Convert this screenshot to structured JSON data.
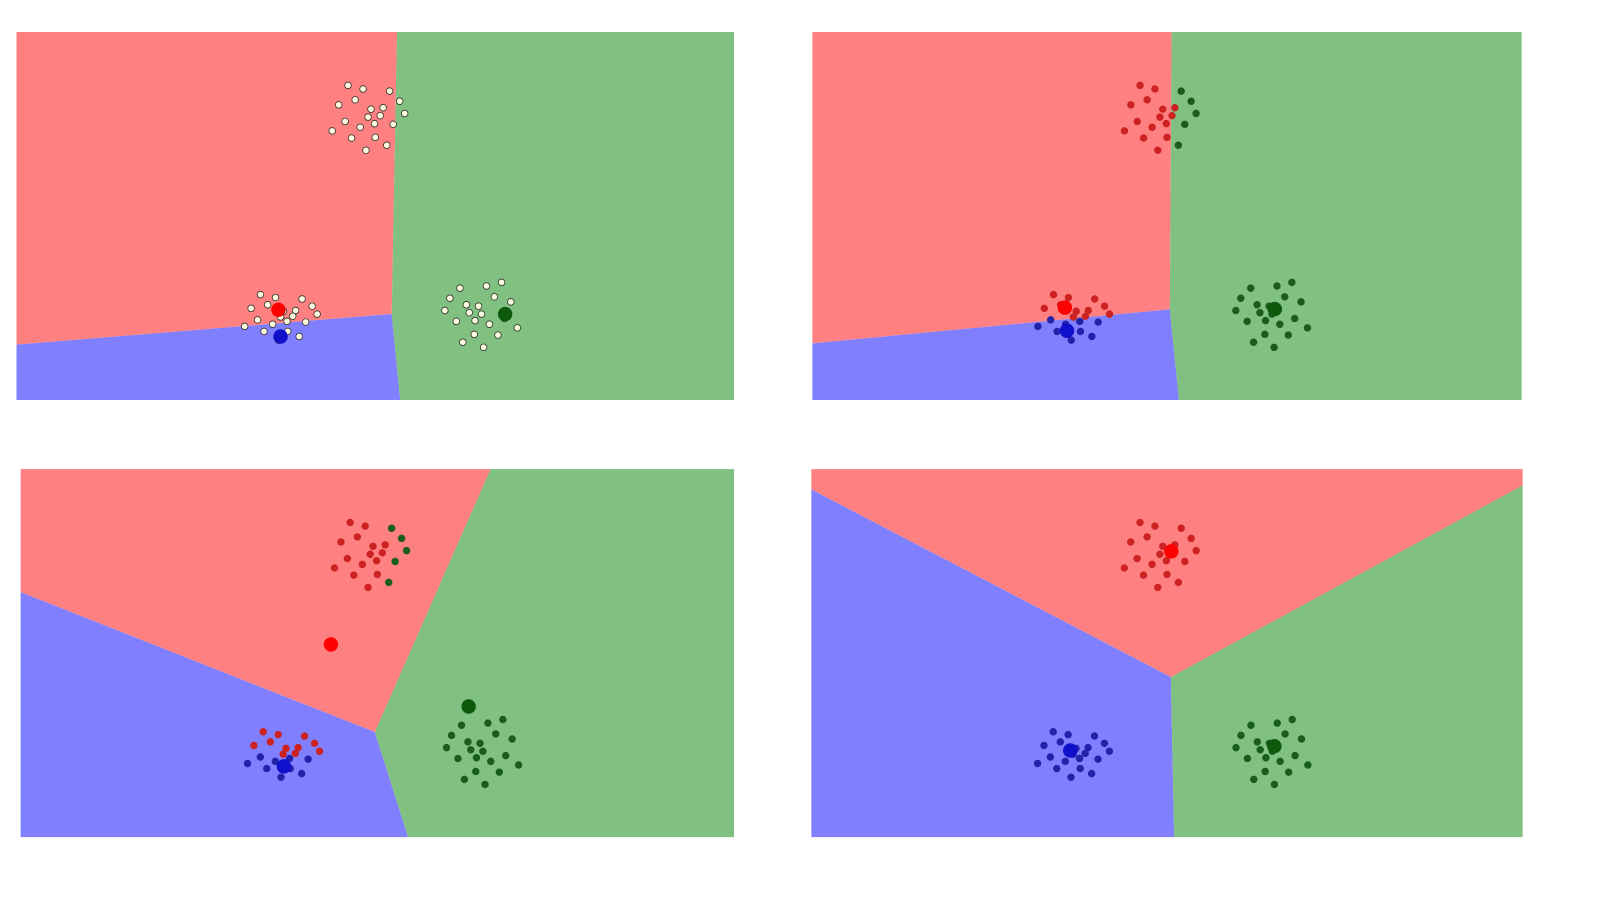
{
  "chart_data": [
    {
      "type": "scatter",
      "xlim": [
        0,
        100
      ],
      "ylim": [
        0,
        51
      ],
      "centroids": {
        "x": [
          36.5,
          36.8,
          68.1
        ],
        "y": [
          12.5,
          8.8,
          11.9
        ],
        "colors": [
          "#ff0000",
          "#1010cc",
          "#0d5a0d"
        ],
        "region_colors": [
          "#ff8080",
          "#8080ff",
          "#80c080"
        ]
      },
      "series": [
        {
          "color": "#fffde0",
          "edge": "#333333",
          "x": [
            49.0,
            51.1,
            47.2,
            52.5,
            45.8,
            50.0,
            48.3,
            53.4,
            44.9,
            51.6,
            46.7,
            49.4,
            47.9,
            50.7,
            48.7,
            54.1,
            44.0,
            52.0,
            46.2,
            49.9,
            36.8,
            38.9,
            35.0,
            40.3,
            33.6,
            37.8,
            36.1,
            41.2,
            32.7,
            39.4,
            34.5,
            37.2,
            35.7,
            38.5,
            36.5,
            41.9,
            31.8,
            39.8,
            34.0,
            37.7,
            64.8,
            62.7,
            66.6,
            61.3,
            68.0,
            63.8,
            65.5,
            60.4,
            68.9,
            62.2,
            67.1,
            64.4,
            65.9,
            63.1,
            65.1,
            59.7,
            69.8,
            61.8,
            67.6,
            63.9
          ],
          "y": [
            39.2,
            40.5,
            41.6,
            38.2,
            38.6,
            36.4,
            43.1,
            41.4,
            40.9,
            35.3,
            36.3,
            40.3,
            37.8,
            39.4,
            34.6,
            39.7,
            37.3,
            42.8,
            43.6,
            38.3,
            11.5,
            12.4,
            13.2,
            10.8,
            11.1,
            9.5,
            14.2,
            13.0,
            12.7,
            8.8,
            9.5,
            12.3,
            10.5,
            11.6,
            8.3,
            11.9,
            10.2,
            14.0,
            14.6,
            10.9,
            11.9,
            13.2,
            14.3,
            10.9,
            11.3,
            9.1,
            15.8,
            14.1,
            13.6,
            8.0,
            9.0,
            13.0,
            10.5,
            12.1,
            7.3,
            12.4,
            10.0,
            15.5,
            16.3,
            11.0
          ]
        }
      ]
    },
    {
      "type": "scatter",
      "xlim": [
        0,
        100
      ],
      "ylim": [
        0,
        51
      ],
      "centroids": {
        "x": [
          35.6,
          35.9,
          65.2
        ],
        "y": [
          12.8,
          9.6,
          12.6
        ],
        "colors": [
          "#ff0000",
          "#1010cc",
          "#0d5a0d"
        ],
        "region_colors": [
          "#ff8080",
          "#8080ff",
          "#80c080"
        ]
      },
      "series": [
        {
          "color": "#cc2222",
          "edge": "#cc2222",
          "x": [
            49.0,
            51.1,
            47.2,
            45.8,
            50.0,
            48.3,
            44.9,
            46.7,
            49.4,
            47.9,
            50.7,
            48.7,
            44.0,
            46.2,
            49.9,
            36.8,
            38.9,
            35.0,
            36.1,
            41.2,
            32.7,
            37.2,
            38.5,
            41.9,
            39.8,
            34.0
          ],
          "y": [
            39.2,
            40.5,
            41.6,
            38.6,
            36.4,
            43.1,
            40.9,
            36.3,
            40.3,
            37.8,
            39.4,
            34.6,
            37.3,
            43.6,
            38.3,
            11.5,
            12.4,
            13.2,
            14.2,
            13.0,
            12.7,
            12.3,
            11.6,
            11.9,
            14.0,
            14.6
          ]
        },
        {
          "color": "#1a5c1a",
          "edge": "#1a5c1a",
          "x": [
            52.5,
            53.4,
            51.6,
            54.1,
            52.0,
            64.8,
            62.7,
            66.6,
            61.3,
            68.0,
            63.8,
            65.5,
            60.4,
            68.9,
            62.2,
            67.1,
            64.4,
            65.9,
            63.1,
            65.1,
            59.7,
            69.8,
            61.8,
            67.6,
            63.9
          ],
          "y": [
            38.2,
            41.4,
            35.3,
            39.7,
            42.8,
            11.9,
            13.2,
            14.3,
            10.9,
            11.3,
            9.1,
            15.8,
            14.1,
            13.6,
            8.0,
            9.0,
            13.0,
            10.5,
            12.1,
            7.3,
            12.4,
            10.0,
            15.5,
            16.3,
            11.0
          ]
        },
        {
          "color": "#2222aa",
          "edge": "#2222aa",
          "x": [
            40.3,
            33.6,
            37.8,
            39.4,
            34.5,
            35.7,
            36.5,
            31.8,
            37.7
          ],
          "y": [
            10.8,
            11.1,
            9.5,
            8.8,
            9.5,
            10.5,
            8.3,
            10.2,
            10.9
          ]
        }
      ]
    },
    {
      "type": "scatter",
      "xlim": [
        0,
        100
      ],
      "ylim": [
        0,
        51
      ],
      "centroids": {
        "x": [
          43.5,
          36.9,
          62.8
        ],
        "y": [
          26.7,
          9.8,
          18.1
        ],
        "colors": [
          "#ff0000",
          "#1010cc",
          "#0d5a0d"
        ],
        "region_colors": [
          "#ff8080",
          "#8080ff",
          "#80c080"
        ]
      },
      "series": [
        {
          "color": "#cc2222",
          "edge": "#cc2222",
          "x": [
            49.0,
            51.1,
            47.2,
            45.8,
            50.0,
            48.3,
            44.9,
            46.7,
            49.4,
            47.9,
            50.7,
            48.7,
            44.0,
            46.2,
            49.9,
            36.8,
            38.9,
            35.0,
            36.1,
            41.2,
            32.7,
            37.2,
            38.5,
            41.9,
            39.8,
            34.0
          ],
          "y": [
            39.2,
            40.5,
            41.6,
            38.6,
            36.4,
            43.1,
            40.9,
            36.3,
            40.3,
            37.8,
            39.4,
            34.6,
            37.3,
            43.6,
            38.3,
            11.5,
            12.4,
            13.2,
            14.2,
            13.0,
            12.7,
            12.3,
            11.6,
            11.9,
            14.0,
            14.6
          ]
        },
        {
          "color": "#1a5c1a",
          "edge": "#1a5c1a",
          "x": [
            52.5,
            53.4,
            51.6,
            54.1,
            52.0,
            64.8,
            62.7,
            66.6,
            61.3,
            68.0,
            63.8,
            65.5,
            60.4,
            68.9,
            62.2,
            67.1,
            64.4,
            65.9,
            63.1,
            65.1,
            59.7,
            69.8,
            61.8,
            67.6,
            63.9
          ],
          "y": [
            38.2,
            41.4,
            35.3,
            39.7,
            42.8,
            11.9,
            13.2,
            14.3,
            10.9,
            11.3,
            9.1,
            15.8,
            14.1,
            13.6,
            8.0,
            9.0,
            13.0,
            10.5,
            12.1,
            7.3,
            12.4,
            10.0,
            15.5,
            16.3,
            11.0
          ]
        },
        {
          "color": "#2222aa",
          "edge": "#2222aa",
          "x": [
            40.3,
            33.6,
            37.8,
            39.4,
            34.5,
            35.7,
            36.5,
            31.8,
            37.7
          ],
          "y": [
            10.8,
            11.1,
            9.5,
            8.8,
            9.5,
            10.5,
            8.3,
            10.2,
            10.9
          ]
        }
      ]
    },
    {
      "type": "scatter",
      "xlim": [
        0,
        100
      ],
      "ylim": [
        0,
        51
      ],
      "centroids": {
        "x": [
          50.6,
          36.4,
          65.1
        ],
        "y": [
          39.6,
          12.0,
          12.6
        ],
        "colors": [
          "#ff0000",
          "#1010cc",
          "#0d5a0d"
        ],
        "region_colors": [
          "#ff8080",
          "#8080ff",
          "#80c080"
        ]
      },
      "series": [
        {
          "color": "#cc2222",
          "edge": "#cc2222",
          "x": [
            49.0,
            51.1,
            47.2,
            52.5,
            45.8,
            50.0,
            48.3,
            53.4,
            44.9,
            51.6,
            46.7,
            49.4,
            47.9,
            50.7,
            48.7,
            54.1,
            44.0,
            52.0,
            46.2,
            49.9
          ],
          "y": [
            39.2,
            40.5,
            41.6,
            38.2,
            38.6,
            36.4,
            43.1,
            41.4,
            40.9,
            35.3,
            36.3,
            40.3,
            37.8,
            39.4,
            34.6,
            39.7,
            37.3,
            42.8,
            43.6,
            38.3
          ]
        },
        {
          "color": "#2222aa",
          "edge": "#2222aa",
          "x": [
            36.8,
            38.9,
            35.0,
            40.3,
            33.6,
            37.8,
            36.1,
            41.2,
            32.7,
            39.4,
            34.5,
            37.2,
            35.7,
            38.5,
            36.5,
            41.9,
            31.8,
            39.8,
            34.0,
            37.7
          ],
          "y": [
            11.5,
            12.4,
            13.2,
            10.8,
            11.1,
            9.5,
            14.2,
            13.0,
            12.7,
            8.8,
            9.5,
            12.3,
            10.5,
            11.6,
            8.3,
            11.9,
            10.2,
            14.0,
            14.6,
            10.9
          ]
        },
        {
          "color": "#1a5c1a",
          "edge": "#1a5c1a",
          "x": [
            64.8,
            62.7,
            66.6,
            61.3,
            68.0,
            63.8,
            65.5,
            60.4,
            68.9,
            62.2,
            67.1,
            64.4,
            65.9,
            63.1,
            65.1,
            59.7,
            69.8,
            61.8,
            67.6,
            63.9
          ],
          "y": [
            11.9,
            13.2,
            14.3,
            10.9,
            11.3,
            9.1,
            15.8,
            14.1,
            13.6,
            8.0,
            9.0,
            13.0,
            10.5,
            12.1,
            7.3,
            12.4,
            10.0,
            15.5,
            16.3,
            11.0
          ]
        }
      ]
    }
  ]
}
